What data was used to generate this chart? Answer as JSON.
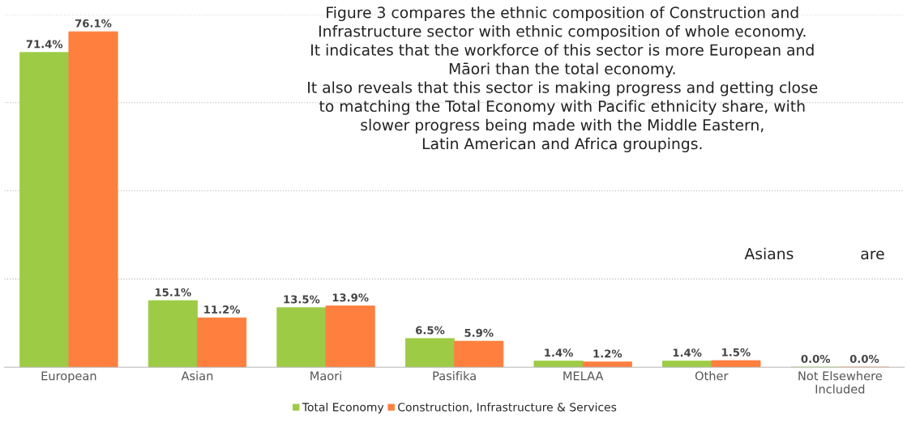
{
  "chart_data": {
    "type": "bar",
    "categories": [
      "European",
      "Asian",
      "Maori",
      "Pasifika",
      "MELAA",
      "Other",
      "Not Elsewhere\nIncluded"
    ],
    "series": [
      {
        "name": "Total Economy",
        "color": "#9dcb45",
        "values": [
          71.4,
          15.1,
          13.5,
          6.5,
          1.4,
          1.4,
          0.0
        ],
        "value_labels": [
          "71.4%",
          "15.1%",
          "13.5%",
          "6.5%",
          "1.4%",
          "1.4%",
          "0.0%"
        ]
      },
      {
        "name": "Construction, Infrastructure & Services",
        "color": "#fe7f3e",
        "values": [
          76.1,
          11.2,
          13.9,
          5.9,
          1.2,
          1.5,
          0.0
        ],
        "value_labels": [
          "76.1%",
          "11.2%",
          "13.9%",
          "5.9%",
          "1.2%",
          "1.5%",
          "0.0%"
        ]
      }
    ],
    "ylim": [
      0,
      80
    ],
    "yticks": [
      {
        "value": 0,
        "label": null
      },
      {
        "value": 20,
        "label": null
      },
      {
        "value": 40,
        "label": null
      },
      {
        "value": 60,
        "label": null
      },
      {
        "value": 80,
        "label": null
      }
    ],
    "tick_labels": "x",
    "grid": "y",
    "legend": "bottom",
    "annotations": [
      "Figure 3 compares the ethnic composition of Construction and\nInfrastructure sector with ethnic composition of whole economy.\nIt indicates that the workforce of this sector is more European and\nMāori than the total economy.\nIt also reveals that this sector is making progress and getting close\nto matching the Total Economy with Pacific ethnicity share, with\nslower progress being made with the Middle Eastern,\nLatin American and Africa groupings.",
      "Asians",
      "are"
    ]
  }
}
